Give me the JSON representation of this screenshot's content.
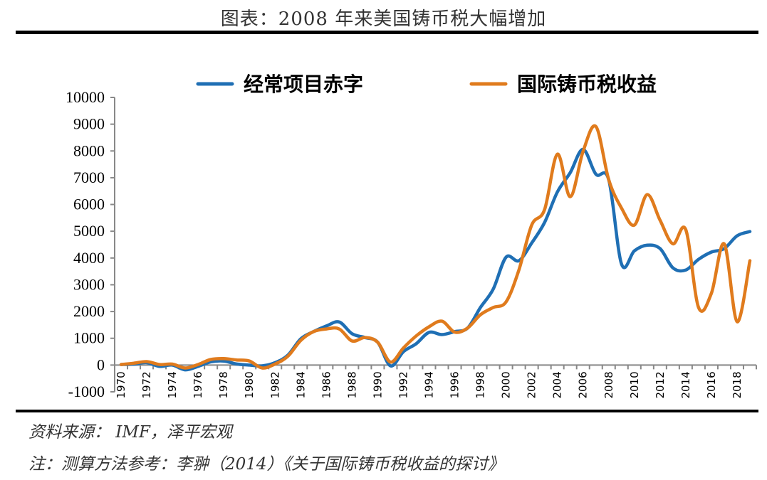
{
  "title": "图表：2008 年来美国铸币税大幅增加",
  "source": "资料来源：  IMF，泽平宏观",
  "note": "注：测算方法参考：李翀（2014）《关于国际铸币税收益的探讨》",
  "chart_data": {
    "type": "line",
    "title": "图表：2008 年来美国铸币税大幅增加",
    "xlabel": "",
    "ylabel": "",
    "ylim": [
      -1000,
      10000
    ],
    "yticks": [
      "10000",
      "9000",
      "8000",
      "7000",
      "6000",
      "5000",
      "4000",
      "3000",
      "2000",
      "1000",
      "0",
      "-1000"
    ],
    "ytick_values": [
      10000,
      9000,
      8000,
      7000,
      6000,
      5000,
      4000,
      3000,
      2000,
      1000,
      0,
      -1000
    ],
    "x": [
      1970,
      1971,
      1972,
      1973,
      1974,
      1975,
      1976,
      1977,
      1978,
      1979,
      1980,
      1981,
      1982,
      1983,
      1984,
      1985,
      1986,
      1987,
      1988,
      1989,
      1990,
      1991,
      1992,
      1993,
      1994,
      1995,
      1996,
      1997,
      1998,
      1999,
      2000,
      2001,
      2002,
      2003,
      2004,
      2005,
      2006,
      2007,
      2008,
      2009,
      2010,
      2011,
      2012,
      2013,
      2014,
      2015,
      2016,
      2017,
      2018,
      2019
    ],
    "xtick_labels": [
      "1970",
      "1972",
      "1974",
      "1976",
      "1978",
      "1980",
      "1982",
      "1984",
      "1986",
      "1988",
      "1990",
      "1992",
      "1994",
      "1996",
      "1998",
      "2000",
      "2002",
      "2004",
      "2006",
      "2008",
      "2010",
      "2012",
      "2014",
      "2016",
      "2018"
    ],
    "grid": false,
    "legend_position": "top",
    "series": [
      {
        "name": "经常项目赤字",
        "color": "#1f6fb4",
        "values": [
          20,
          35,
          90,
          -50,
          0,
          -180,
          -50,
          120,
          150,
          40,
          0,
          -30,
          90,
          370,
          980,
          1250,
          1460,
          1610,
          1170,
          1030,
          850,
          -30,
          500,
          800,
          1220,
          1140,
          1250,
          1380,
          2150,
          2840,
          4030,
          3900,
          4560,
          5330,
          6470,
          7190,
          8060,
          7130,
          6920,
          3770,
          4270,
          4480,
          4350,
          3630,
          3550,
          3950,
          4220,
          4350,
          4830,
          4990
        ]
      },
      {
        "name": "国际铸币税收益",
        "color": "#e07b1d",
        "values": [
          20,
          70,
          130,
          20,
          35,
          -110,
          20,
          210,
          240,
          190,
          150,
          -110,
          40,
          330,
          920,
          1250,
          1350,
          1350,
          900,
          1030,
          850,
          110,
          640,
          1090,
          1430,
          1640,
          1230,
          1380,
          1880,
          2150,
          2360,
          3550,
          5230,
          5810,
          7880,
          6290,
          7980,
          8910,
          6920,
          5860,
          5230,
          6370,
          5410,
          4530,
          5060,
          2150,
          2680,
          4530,
          1620,
          3900
        ]
      }
    ]
  }
}
